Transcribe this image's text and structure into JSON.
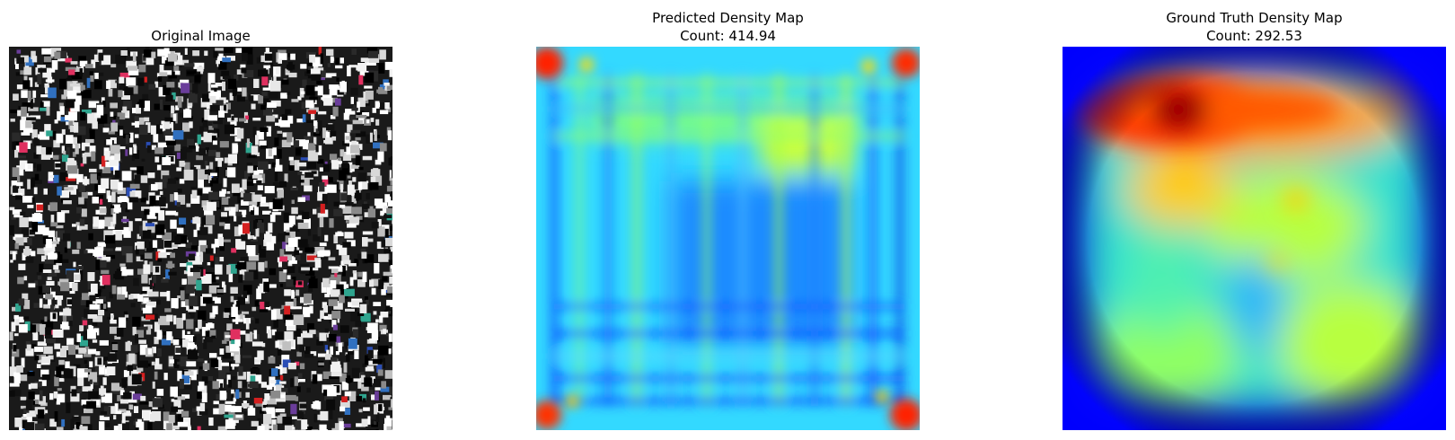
{
  "figure": {
    "panels": [
      {
        "title": "Original Image",
        "subtitle": ""
      },
      {
        "title": "Predicted Density Map",
        "subtitle": "Count: 414.94"
      },
      {
        "title": "Ground Truth Density Map",
        "subtitle": "Count: 292.53"
      }
    ],
    "colormap": "jet"
  }
}
